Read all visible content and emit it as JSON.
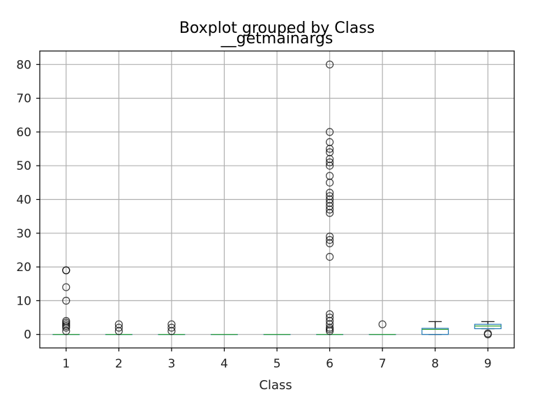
{
  "chart_data": {
    "type": "box",
    "suptitle": "Boxplot grouped by Class",
    "title": "__getmainargs",
    "xlabel": "Class",
    "ylabel": "",
    "ylim": [
      -4,
      84
    ],
    "yticks": [
      0,
      10,
      20,
      30,
      40,
      50,
      60,
      70,
      80
    ],
    "grid": true,
    "categories": [
      "1",
      "2",
      "3",
      "4",
      "5",
      "6",
      "7",
      "8",
      "9"
    ],
    "boxes": [
      {
        "category": "1",
        "q1": 0,
        "median": 0,
        "q3": 0,
        "whisker_low": 0,
        "whisker_high": 0,
        "fliers": [
          1,
          2,
          2.5,
          3,
          3.5,
          4,
          10,
          14,
          19,
          19
        ]
      },
      {
        "category": "2",
        "q1": 0,
        "median": 0,
        "q3": 0,
        "whisker_low": 0,
        "whisker_high": 0,
        "fliers": [
          1,
          2,
          3
        ]
      },
      {
        "category": "3",
        "q1": 0,
        "median": 0,
        "q3": 0,
        "whisker_low": 0,
        "whisker_high": 0,
        "fliers": [
          1,
          2,
          3
        ]
      },
      {
        "category": "4",
        "q1": 0,
        "median": 0,
        "q3": 0,
        "whisker_low": 0,
        "whisker_high": 0,
        "fliers": []
      },
      {
        "category": "5",
        "q1": 0,
        "median": 0,
        "q3": 0,
        "whisker_low": 0,
        "whisker_high": 0,
        "fliers": []
      },
      {
        "category": "6",
        "q1": 0,
        "median": 0,
        "q3": 0,
        "whisker_low": 0,
        "whisker_high": 0,
        "fliers": [
          1,
          1.5,
          2,
          3,
          4,
          5,
          6,
          23,
          27,
          28,
          29,
          36,
          37,
          38,
          39,
          40,
          41,
          42,
          45,
          47,
          50,
          51,
          52,
          54,
          55,
          57,
          60,
          80
        ]
      },
      {
        "category": "7",
        "q1": 0,
        "median": 0,
        "q3": 0,
        "whisker_low": 0,
        "whisker_high": 0,
        "fliers": [
          3
        ]
      },
      {
        "category": "8",
        "q1": 0,
        "median": 1.5,
        "q3": 1.8,
        "whisker_low": 0,
        "whisker_high": 3.8,
        "fliers": []
      },
      {
        "category": "9",
        "q1": 1.7,
        "median": 2.5,
        "q3": 3.0,
        "whisker_low": 1.7,
        "whisker_high": 3.8,
        "fliers": [
          0,
          0.3
        ]
      }
    ]
  }
}
